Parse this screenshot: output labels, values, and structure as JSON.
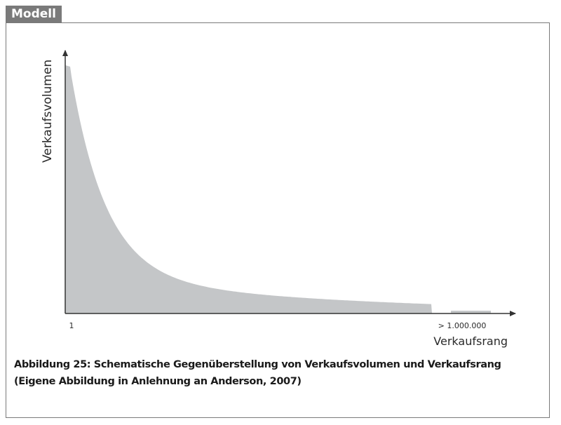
{
  "box_tab": "Modell",
  "chart_data": {
    "type": "area",
    "title": "",
    "xlabel": "Verkaufsrang",
    "ylabel": "Verkaufsvolumen",
    "x_ticks": [
      "1",
      "> 1.000.000"
    ],
    "color": "#c4c6c8",
    "axis_color": "#333333"
  },
  "caption": {
    "line1": "Abbildung 25: Schematische Gegenüberstellung von Verkaufsvolumen und Verkaufsrang",
    "line2": "(Eigene Abbildung in Anlehnung an Anderson, 2007)"
  }
}
